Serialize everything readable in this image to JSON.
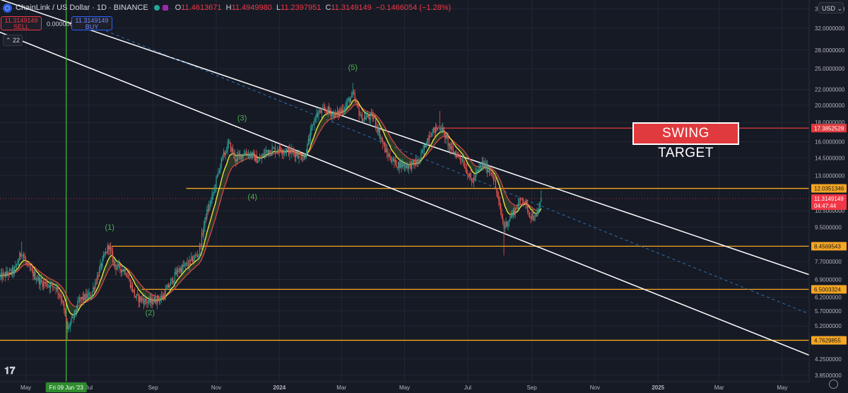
{
  "header": {
    "symbol": "ChainLink / US Dollar · 1D · BINANCE",
    "open_label": "O",
    "open": "11.4613671",
    "high_label": "H",
    "high": "11.4949980",
    "low_label": "L",
    "low": "11.2397951",
    "close_label": "C",
    "close": "11.3149149",
    "change": "−0.1466054 (−1.28%)"
  },
  "trade": {
    "sell_price": "11.3149149",
    "sell_label": "SELL",
    "buy_price": "11.3149149",
    "buy_label": "BUY",
    "spread": "0.0000000"
  },
  "indicators_collapse": "22",
  "currency": "USD",
  "annotation": "SWING TARGET",
  "colors": {
    "background": "#161a25",
    "grid": "#232734",
    "up": "#26a69a",
    "down": "#ef5350",
    "level": "#f5a623",
    "channel": "#ffffff",
    "midline": "#2e6fb5",
    "ema_fast": "#e3e33f",
    "ema_slow": "#e0474c",
    "swing_line": "#e03a3e",
    "vline": "#3fc03a"
  },
  "chart_data": {
    "type": "candlestick",
    "title": "ChainLink / US Dollar · 1D · BINANCE",
    "y_scale": "log",
    "ylim": [
      3.7,
      38
    ],
    "xlim": [
      "2023-04-06",
      "2025-05-27"
    ],
    "y_ticks": [
      "36.0000000",
      "32.0000000",
      "28.0000000",
      "25.0000000",
      "22.0000000",
      "20.0000000",
      "18.0000000",
      "16.0000000",
      "14.5000000",
      "13.0000000",
      "10.5000000",
      "9.5000000",
      "7.7000000",
      "6.9000000",
      "6.2000000",
      "5.7000000",
      "5.2000000",
      "4.2500000",
      "3.8500000"
    ],
    "x_ticks": [
      {
        "date": "2023-05-01",
        "label": "May"
      },
      {
        "date": "2023-07-01",
        "label": "Jul"
      },
      {
        "date": "2023-09-01",
        "label": "Sep"
      },
      {
        "date": "2023-11-01",
        "label": "Nov"
      },
      {
        "date": "2024-01-01",
        "label": "2024"
      },
      {
        "date": "2024-03-01",
        "label": "Mar"
      },
      {
        "date": "2024-05-01",
        "label": "May"
      },
      {
        "date": "2024-07-01",
        "label": "Jul"
      },
      {
        "date": "2024-09-01",
        "label": "Sep"
      },
      {
        "date": "2024-11-01",
        "label": "Nov"
      },
      {
        "date": "2025-01-01",
        "label": "2025"
      },
      {
        "date": "2025-03-01",
        "label": "Mar"
      },
      {
        "date": "2025-05-01",
        "label": "May"
      }
    ],
    "crosshair_date": {
      "date": "2023-06-09",
      "label": "Fri 09 Jun '23"
    },
    "horizontal_levels": [
      {
        "price": 17.3852528,
        "label": "17.3852528",
        "color": "#e03a3e",
        "from": "2024-06-05"
      },
      {
        "price": 12.0351346,
        "label": "12.0351346",
        "color": "#f5a623",
        "from": "2023-10-03"
      },
      {
        "price": 8.4569543,
        "label": "8.4569543",
        "color": "#f5a623",
        "from": "2023-07-23"
      },
      {
        "price": 6.5003324,
        "label": "6.5003324",
        "color": "#f5a623",
        "from": "2023-08-21"
      },
      {
        "price": 4.7629855,
        "label": "4.7629855",
        "color": "#f5a623",
        "from": "2023-04-06"
      }
    ],
    "last_price": {
      "price": 11.3149149,
      "label": "11.3149149",
      "countdown": "04:47:44"
    },
    "channel_upper": {
      "points": [
        {
          "date": "2023-03-15",
          "price": 40.0
        },
        {
          "date": "2025-06-10",
          "price": 6.9
        }
      ]
    },
    "channel_lower": {
      "points": [
        {
          "date": "2023-03-15",
          "price": 33.0
        },
        {
          "date": "2025-06-10",
          "price": 4.2
        }
      ]
    },
    "channel_mid": {
      "points": [
        {
          "date": "2023-06-17",
          "price": 34.0
        },
        {
          "date": "2025-06-10",
          "price": 5.4
        }
      ]
    },
    "wave_labels": [
      {
        "label": "(1)",
        "date": "2023-07-21",
        "price": 9.35
      },
      {
        "label": "(2)",
        "date": "2023-08-29",
        "price": 5.55
      },
      {
        "label": "(3)",
        "date": "2023-11-26",
        "price": 18.2
      },
      {
        "label": "(4)",
        "date": "2023-12-06",
        "price": 11.25
      },
      {
        "label": "(5)",
        "date": "2024-03-12",
        "price": 24.8
      }
    ],
    "anchors": [
      [
        "2023-04-06",
        7.0
      ],
      [
        "2023-04-20",
        7.3
      ],
      [
        "2023-04-27",
        8.2
      ],
      [
        "2023-05-03",
        7.4
      ],
      [
        "2023-05-15",
        6.8
      ],
      [
        "2023-05-30",
        6.6
      ],
      [
        "2023-06-05",
        6.1
      ],
      [
        "2023-06-10",
        5.1
      ],
      [
        "2023-06-15",
        5.4
      ],
      [
        "2023-06-22",
        6.1
      ],
      [
        "2023-07-03",
        6.3
      ],
      [
        "2023-07-14",
        7.7
      ],
      [
        "2023-07-20",
        8.5
      ],
      [
        "2023-07-26",
        7.5
      ],
      [
        "2023-08-05",
        7.3
      ],
      [
        "2023-08-15",
        6.2
      ],
      [
        "2023-08-28",
        6.0
      ],
      [
        "2023-09-10",
        6.2
      ],
      [
        "2023-09-25",
        7.3
      ],
      [
        "2023-10-05",
        7.6
      ],
      [
        "2023-10-15",
        8.1
      ],
      [
        "2023-10-22",
        10.2
      ],
      [
        "2023-10-28",
        11.4
      ],
      [
        "2023-11-05",
        14.0
      ],
      [
        "2023-11-13",
        15.8
      ],
      [
        "2023-11-20",
        14.4
      ],
      [
        "2023-11-28",
        15.0
      ],
      [
        "2023-12-05",
        14.8
      ],
      [
        "2023-12-12",
        14.2
      ],
      [
        "2023-12-20",
        15.2
      ],
      [
        "2024-01-01",
        15.3
      ],
      [
        "2024-01-15",
        15.0
      ],
      [
        "2024-01-25",
        14.5
      ],
      [
        "2024-02-05",
        18.8
      ],
      [
        "2024-02-15",
        19.5
      ],
      [
        "2024-02-25",
        18.8
      ],
      [
        "2024-03-05",
        20.0
      ],
      [
        "2024-03-12",
        21.3
      ],
      [
        "2024-03-20",
        18.5
      ],
      [
        "2024-04-01",
        18.6
      ],
      [
        "2024-04-13",
        15.0
      ],
      [
        "2024-04-22",
        14.0
      ],
      [
        "2024-05-05",
        13.8
      ],
      [
        "2024-05-15",
        14.2
      ],
      [
        "2024-05-25",
        16.8
      ],
      [
        "2024-06-05",
        17.6
      ],
      [
        "2024-06-15",
        15.2
      ],
      [
        "2024-06-25",
        14.5
      ],
      [
        "2024-07-05",
        12.5
      ],
      [
        "2024-07-15",
        14.0
      ],
      [
        "2024-07-25",
        13.2
      ],
      [
        "2024-08-05",
        9.5
      ],
      [
        "2024-08-15",
        10.5
      ],
      [
        "2024-08-23",
        11.4
      ],
      [
        "2024-08-30",
        10.3
      ],
      [
        "2024-09-05",
        10.0
      ],
      [
        "2024-09-10",
        11.31
      ]
    ]
  }
}
